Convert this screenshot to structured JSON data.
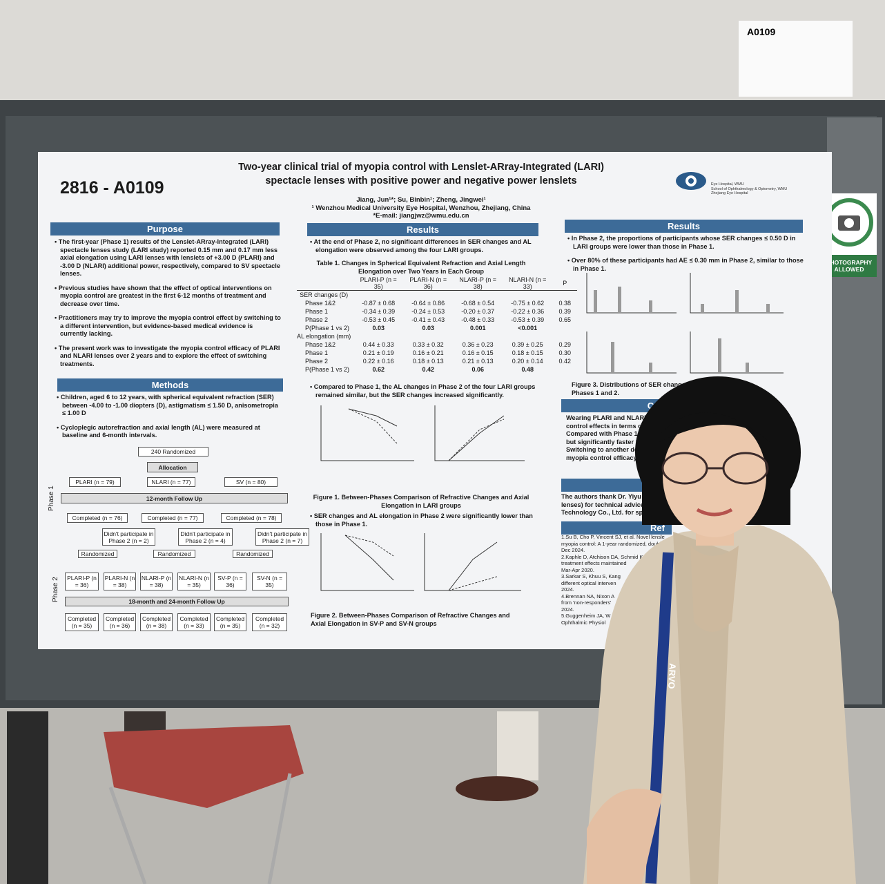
{
  "sign": {
    "code": "A0109"
  },
  "badge": {
    "text": "PHOTOGRAPHY ALLOWED"
  },
  "lanyard": {
    "text": "ARVO"
  },
  "poster": {
    "id": "2816 - A0109",
    "title": "Two-year clinical trial of myopia control with Lenslet-ARray-Integrated (LARI) spectacle lenses with positive power and negative power lenslets",
    "authors": "Jiang, Jun¹*; Su, Binbin¹; Zheng, Jingwei¹",
    "affiliation": "¹ Wenzhou Medical University Eye Hospital, Wenzhou, Zhejiang, China",
    "email": "*E-mail: jiangjwz@wmu.edu.cn",
    "logo": [
      "Eye Hospital, WMU",
      "School of Ophthalmology & Optometry, WMU",
      "Zhejiang Eye Hospital"
    ],
    "purpose": {
      "heading": "Purpose",
      "bullets": [
        "The first-year (Phase 1) results of the Lenslet-ARray-Integrated (LARI) spectacle lenses study (LARI study) reported 0.15 mm and 0.17 mm less axial elongation using LARI lenses with lenslets of +3.00 D (PLARI) and -3.00 D (NLARI) additional power, respectively, compared to SV spectacle lenses.",
        "Previous studies have shown that the effect of optical interventions on myopia control are greatest in the first 6-12 months of treatment and decrease over time.",
        "Practitioners may try to improve the myopia control effect by switching to a different intervention, but evidence-based medical evidence is currently lacking.",
        "The present work was to investigate the myopia control efficacy of PLARI and NLARI lenses over 2 years and to explore the effect of switching treatments."
      ]
    },
    "methods": {
      "heading": "Methods",
      "bullets": [
        "Children, aged 6 to 12 years, with spherical equivalent refraction (SER) between -4.00 to -1.00 diopters (D), astigmatism ≤ 1.50 D, anisometropia ≤ 1.00 D",
        "Cycloplegic autorefraction and axial length (AL) were measured at baseline and 6-month intervals."
      ],
      "flow": {
        "randomized": "240 Randomized",
        "allocation": "Allocation",
        "arms": [
          "PLARI (n = 79)",
          "NLARI (n = 77)",
          "SV (n = 80)"
        ],
        "phase1": "Phase 1",
        "followup1": "12-month Follow Up",
        "completed1": [
          "Completed (n = 76)",
          "Completed (n = 77)",
          "Completed (n = 78)"
        ],
        "dropped": [
          "Didn't participate in Phase 2 (n = 2)",
          "Didn't participate in Phase 2 (n = 4)",
          "Didn't participate in Phase 2 (n = 7)"
        ],
        "rerandomized": [
          "Randomized",
          "Randomized",
          "Randomized"
        ],
        "groups": [
          "PLARI-P (n = 36)",
          "PLARI-N (n = 38)",
          "NLARI-P (n = 38)",
          "NLARI-N (n = 35)",
          "SV-P (n = 36)",
          "SV-N (n = 35)"
        ],
        "phase2": "Phase 2",
        "followup2": "18-month and 24-month Follow Up",
        "completed2": [
          "Completed (n = 35)",
          "Completed (n = 36)",
          "Completed (n = 38)",
          "Completed (n = 33)",
          "Completed (n = 35)",
          "Completed (n = 32)"
        ]
      }
    },
    "results_left": {
      "heading": "Results",
      "bullet1": "At the end of Phase 2, no significant differences in SER changes and AL elongation were observed among the four LARI groups.",
      "table": {
        "caption": "Table 1. Changes in Spherical Equivalent Refraction and Axial Length Elongation over Two Years in Each Group",
        "header": [
          "PLARI-P (n = 35)",
          "PLARI-N (n = 36)",
          "NLARI-P (n = 38)",
          "NLARI-N (n = 33)",
          "P"
        ],
        "rows": [
          {
            "label": "SER changes (D)"
          },
          {
            "label": "Phase 1&2",
            "cells": [
              "-0.87 ± 0.68",
              "-0.64 ± 0.86",
              "-0.68 ± 0.54",
              "-0.75 ± 0.62",
              "0.38"
            ]
          },
          {
            "label": "Phase 1",
            "cells": [
              "-0.34 ± 0.39",
              "-0.24 ± 0.53",
              "-0.20 ± 0.37",
              "-0.22 ± 0.36",
              "0.39"
            ]
          },
          {
            "label": "Phase 2",
            "cells": [
              "-0.53 ± 0.45",
              "-0.41 ± 0.43",
              "-0.48 ± 0.33",
              "-0.53 ± 0.39",
              "0.65"
            ]
          },
          {
            "label": "P(Phase 1 vs 2)",
            "cells": [
              "0.03",
              "0.03",
              "0.001",
              "<0.001"
            ]
          },
          {
            "label": "AL elongation (mm)"
          },
          {
            "label": "Phase 1&2",
            "cells": [
              "0.44 ± 0.33",
              "0.33 ± 0.32",
              "0.36 ± 0.23",
              "0.39 ± 0.25",
              "0.29"
            ]
          },
          {
            "label": "Phase 1",
            "cells": [
              "0.21 ± 0.19",
              "0.16 ± 0.21",
              "0.16 ± 0.15",
              "0.18 ± 0.15",
              "0.30"
            ]
          },
          {
            "label": "Phase 2",
            "cells": [
              "0.22 ± 0.16",
              "0.18 ± 0.13",
              "0.21 ± 0.13",
              "0.20 ± 0.14",
              "0.42"
            ]
          },
          {
            "label": "P(Phase 1 vs 2)",
            "cells": [
              "0.62",
              "0.42",
              "0.06",
              "0.48"
            ]
          }
        ]
      },
      "bullet2": "Compared to Phase 1, the AL changes in Phase 2 of the four LARI groups remained similar, but the SER changes increased significantly.",
      "figure1": "Figure 1. Between-Phases Comparison of Refractive Changes and Axial Elongation in LARI groups",
      "bullet3": "SER changes and AL elongation in Phase 2 were significantly lower than those in Phase 1.",
      "figure2": "Figure 2. Between-Phases Comparison of Refractive Changes and Axial Elongation in SV-P and SV-N groups"
    },
    "results_right": {
      "heading": "Results",
      "bullets": [
        "In Phase 2, the proportions of participants whose SER changes ≤ 0.50 D in LARI groups were lower than those in Phase 1.",
        "Over 80% of these participants had AE ≤ 0.30 mm in Phase 2, similar to those in Phase 1."
      ],
      "figure3": "Figure 3. Distributions of SER changes",
      "figure3_end": "Phases 1 and 2."
    },
    "conclusions": {
      "heading": "Con",
      "lines": [
        "Wearing PLARI and NLARI len",
        "control effects in terms of SE",
        "Compared with Phase 1, th",
        "but significantly faster SE",
        "Switching to another des",
        "myopia control efficacy."
      ]
    },
    "acknowledgments": {
      "heading": "Ack",
      "lines": [
        "The authors thank Dr. Yiyu",
        "lenses) for technical advice",
        "Technology Co., Ltd. for spo"
      ]
    },
    "references": {
      "heading": "Ref",
      "lines": [
        "1.Su B, Cho P, Vincent SJ, et al. Novel lensle",
        "myopia control: A 1-year randomized, double",
        "Dec 2024.",
        "2.Kaphle D, Atchison DA, Schmid K",
        "treatment effects maintained",
        "Mar-Apr 2020.",
        "3.Sarkar S, Khuu S, Kang",
        "different optical interven",
        "2024.",
        "4.Brennan NA, Nixon A",
        "from 'non-responders'",
        "2024.",
        "5.Guggenheim JA, W",
        "Ophthalmic Physiol"
      ]
    }
  }
}
